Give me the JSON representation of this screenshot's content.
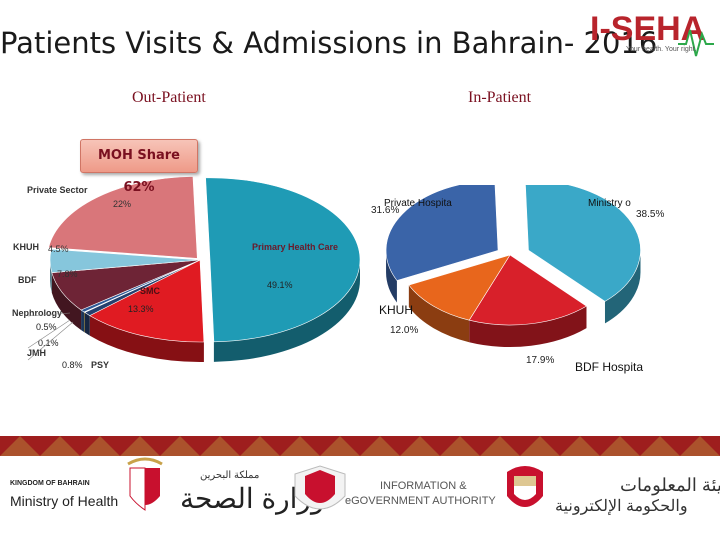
{
  "title": "Patients Visits & Admissions in Bahrain- 2016",
  "logo": {
    "text": "I-SEHA",
    "tagline": "Your health. Your right.",
    "color": "#b8242c",
    "accent": "#2ca84a"
  },
  "subtitle_left": "Out-Patient",
  "subtitle_right": "In-Patient",
  "moh_share": "MOH Share 62%",
  "chart_data": [
    {
      "type": "pie",
      "title": "Out-Patient",
      "slices": [
        {
          "label": "Primary Health Care",
          "value": 49.1,
          "value_label": "49.1%",
          "color": "#1f9bb5"
        },
        {
          "label": "SMC",
          "value": 13.3,
          "value_label": "13.3%",
          "color": "#e01b22"
        },
        {
          "label": "PSY",
          "value": 0.8,
          "value_label": "0.8%",
          "color": "#25406e"
        },
        {
          "label": "JMH",
          "value": 0.1,
          "value_label": "0.1%",
          "color": "#c9a227"
        },
        {
          "label": "Nephrology",
          "value": 0.5,
          "value_label": "0.5%",
          "color": "#2f5a96"
        },
        {
          "label": "BDF",
          "value": 7.8,
          "value_label": "7.8%",
          "color": "#6e2436"
        },
        {
          "label": "KHUH",
          "value": 4.5,
          "value_label": "4.5%",
          "color": "#86c6dc"
        },
        {
          "label": "Private Sector",
          "value": 22,
          "value_label": "22%",
          "color": "#d9767a"
        }
      ]
    },
    {
      "type": "pie",
      "title": "In-Patient",
      "slices": [
        {
          "label": "Ministry o",
          "value": 38.5,
          "value_label": "38.5%",
          "color": "#3aa8c8"
        },
        {
          "label": "BDF Hospita",
          "value": 17.9,
          "value_label": "17.9%",
          "color": "#d8202a"
        },
        {
          "label": "KHUH",
          "value": 12.0,
          "value_label": "12.0%",
          "color": "#e8661c"
        },
        {
          "label": "Private Hospita",
          "value": 31.6,
          "value_label": "31.6%",
          "color": "#3a64a8"
        }
      ]
    }
  ],
  "footer": {
    "kingdom": "KINGDOM OF BAHRAIN",
    "ministry": "Ministry of Health",
    "ministry_ar": "وزارة الصحة",
    "kingdom_ar": "مملكة البحرين",
    "iga_line1": "INFORMATION &",
    "iga_line2": "eGOVERNMENT AUTHORITY",
    "iga_ar1": "هيئة المعلومات",
    "iga_ar2": "والحكومة الإلكترونية"
  }
}
